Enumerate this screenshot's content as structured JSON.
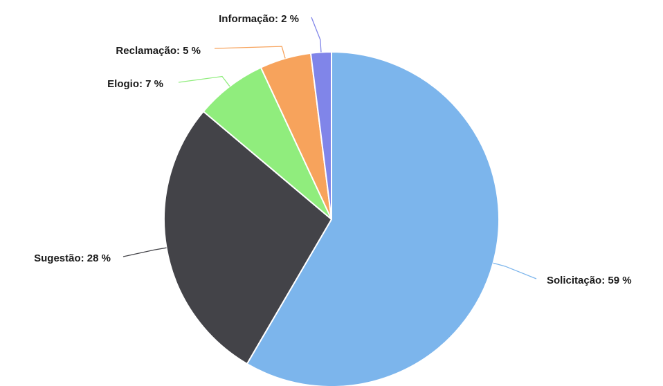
{
  "chart_data": {
    "type": "pie",
    "series": [
      {
        "name": "",
        "slices": [
          {
            "label": "Solicitação",
            "value": 59,
            "display": "Solicitação: 59 %",
            "color": "#7cb5ec"
          },
          {
            "label": "Sugestão",
            "value": 28,
            "display": "Sugestão: 28 %",
            "color": "#434348"
          },
          {
            "label": "Elogio",
            "value": 7,
            "display": "Elogio: 7 %",
            "color": "#90ed7d"
          },
          {
            "label": "Reclamação",
            "value": 5,
            "display": "Reclamação: 5 %",
            "color": "#f7a35c"
          },
          {
            "label": "Informação",
            "value": 2,
            "display": "Informação: 2 %",
            "color": "#8085e9"
          }
        ]
      }
    ],
    "start_at": "12 o'clock",
    "direction": "clockwise",
    "legend": "none",
    "data_labels": "outside with connector lines"
  }
}
